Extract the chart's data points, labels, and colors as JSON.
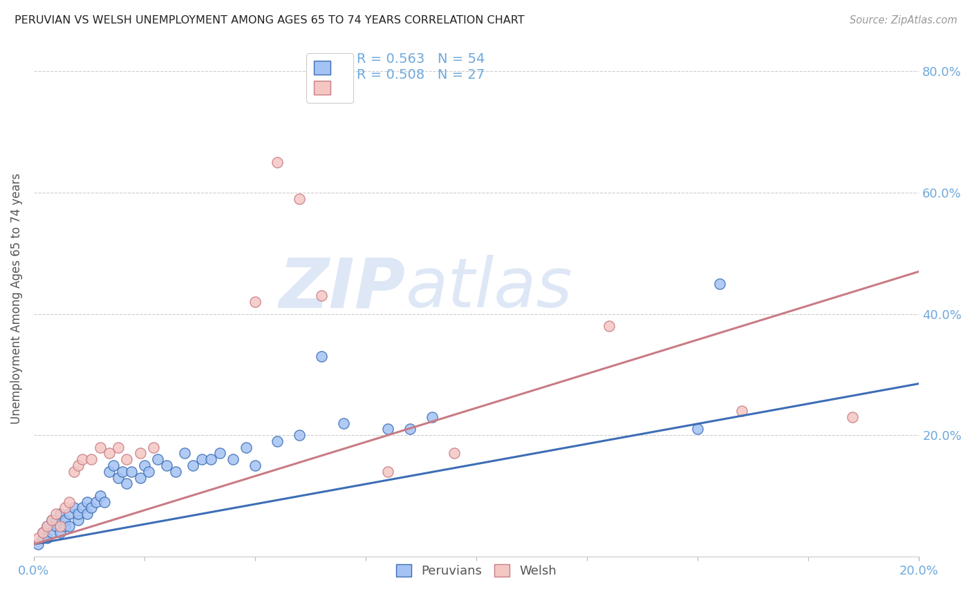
{
  "title": "PERUVIAN VS WELSH UNEMPLOYMENT AMONG AGES 65 TO 74 YEARS CORRELATION CHART",
  "source": "Source: ZipAtlas.com",
  "ylabel": "Unemployment Among Ages 65 to 74 years",
  "xlim": [
    0.0,
    0.2
  ],
  "ylim": [
    0.0,
    0.85
  ],
  "ytick_vals": [
    0.0,
    0.2,
    0.4,
    0.6,
    0.8
  ],
  "ytick_labels": [
    "",
    "20.0%",
    "40.0%",
    "60.0%",
    "80.0%"
  ],
  "xtick_vals": [
    0.0,
    0.2
  ],
  "xtick_labels": [
    "0.0%",
    "20.0%"
  ],
  "legend_r1": "R = 0.563",
  "legend_n1": "N = 54",
  "legend_r2": "R = 0.508",
  "legend_n2": "N = 27",
  "watermark_zip": "ZIP",
  "watermark_atlas": "atlas",
  "peruvians_color": "#a4c2f4",
  "peruvians_edge": "#3d6eb5",
  "welsh_color": "#f4c7c3",
  "welsh_edge": "#c97b84",
  "trend_blue": "#3d6eb5",
  "trend_pink": "#c97b84",
  "background_color": "#ffffff",
  "grid_color": "#cccccc",
  "tick_color": "#6fa8dc",
  "label_color": "#555555",
  "peruvians_x": [
    0.001,
    0.002,
    0.002,
    0.003,
    0.003,
    0.004,
    0.004,
    0.005,
    0.005,
    0.006,
    0.006,
    0.007,
    0.007,
    0.008,
    0.008,
    0.009,
    0.01,
    0.01,
    0.011,
    0.012,
    0.012,
    0.013,
    0.014,
    0.015,
    0.016,
    0.017,
    0.018,
    0.019,
    0.02,
    0.021,
    0.022,
    0.024,
    0.025,
    0.026,
    0.028,
    0.03,
    0.032,
    0.034,
    0.036,
    0.038,
    0.04,
    0.042,
    0.045,
    0.048,
    0.05,
    0.055,
    0.06,
    0.065,
    0.07,
    0.08,
    0.085,
    0.09,
    0.15,
    0.155
  ],
  "peruvians_y": [
    0.02,
    0.03,
    0.04,
    0.03,
    0.05,
    0.04,
    0.06,
    0.05,
    0.06,
    0.04,
    0.07,
    0.05,
    0.06,
    0.07,
    0.05,
    0.08,
    0.06,
    0.07,
    0.08,
    0.07,
    0.09,
    0.08,
    0.09,
    0.1,
    0.09,
    0.14,
    0.15,
    0.13,
    0.14,
    0.12,
    0.14,
    0.13,
    0.15,
    0.14,
    0.16,
    0.15,
    0.14,
    0.17,
    0.15,
    0.16,
    0.16,
    0.17,
    0.16,
    0.18,
    0.15,
    0.19,
    0.2,
    0.33,
    0.22,
    0.21,
    0.21,
    0.23,
    0.21,
    0.45
  ],
  "welsh_x": [
    0.001,
    0.002,
    0.003,
    0.004,
    0.005,
    0.006,
    0.007,
    0.008,
    0.009,
    0.01,
    0.011,
    0.013,
    0.015,
    0.017,
    0.019,
    0.021,
    0.024,
    0.027,
    0.05,
    0.055,
    0.06,
    0.065,
    0.08,
    0.095,
    0.13,
    0.16,
    0.185
  ],
  "welsh_y": [
    0.03,
    0.04,
    0.05,
    0.06,
    0.07,
    0.05,
    0.08,
    0.09,
    0.14,
    0.15,
    0.16,
    0.16,
    0.18,
    0.17,
    0.18,
    0.16,
    0.17,
    0.18,
    0.42,
    0.65,
    0.59,
    0.43,
    0.14,
    0.17,
    0.38,
    0.24,
    0.23
  ],
  "blue_trend": [
    0.0,
    0.02,
    0.2,
    0.285
  ],
  "pink_trend": [
    0.0,
    0.02,
    0.2,
    0.47
  ]
}
